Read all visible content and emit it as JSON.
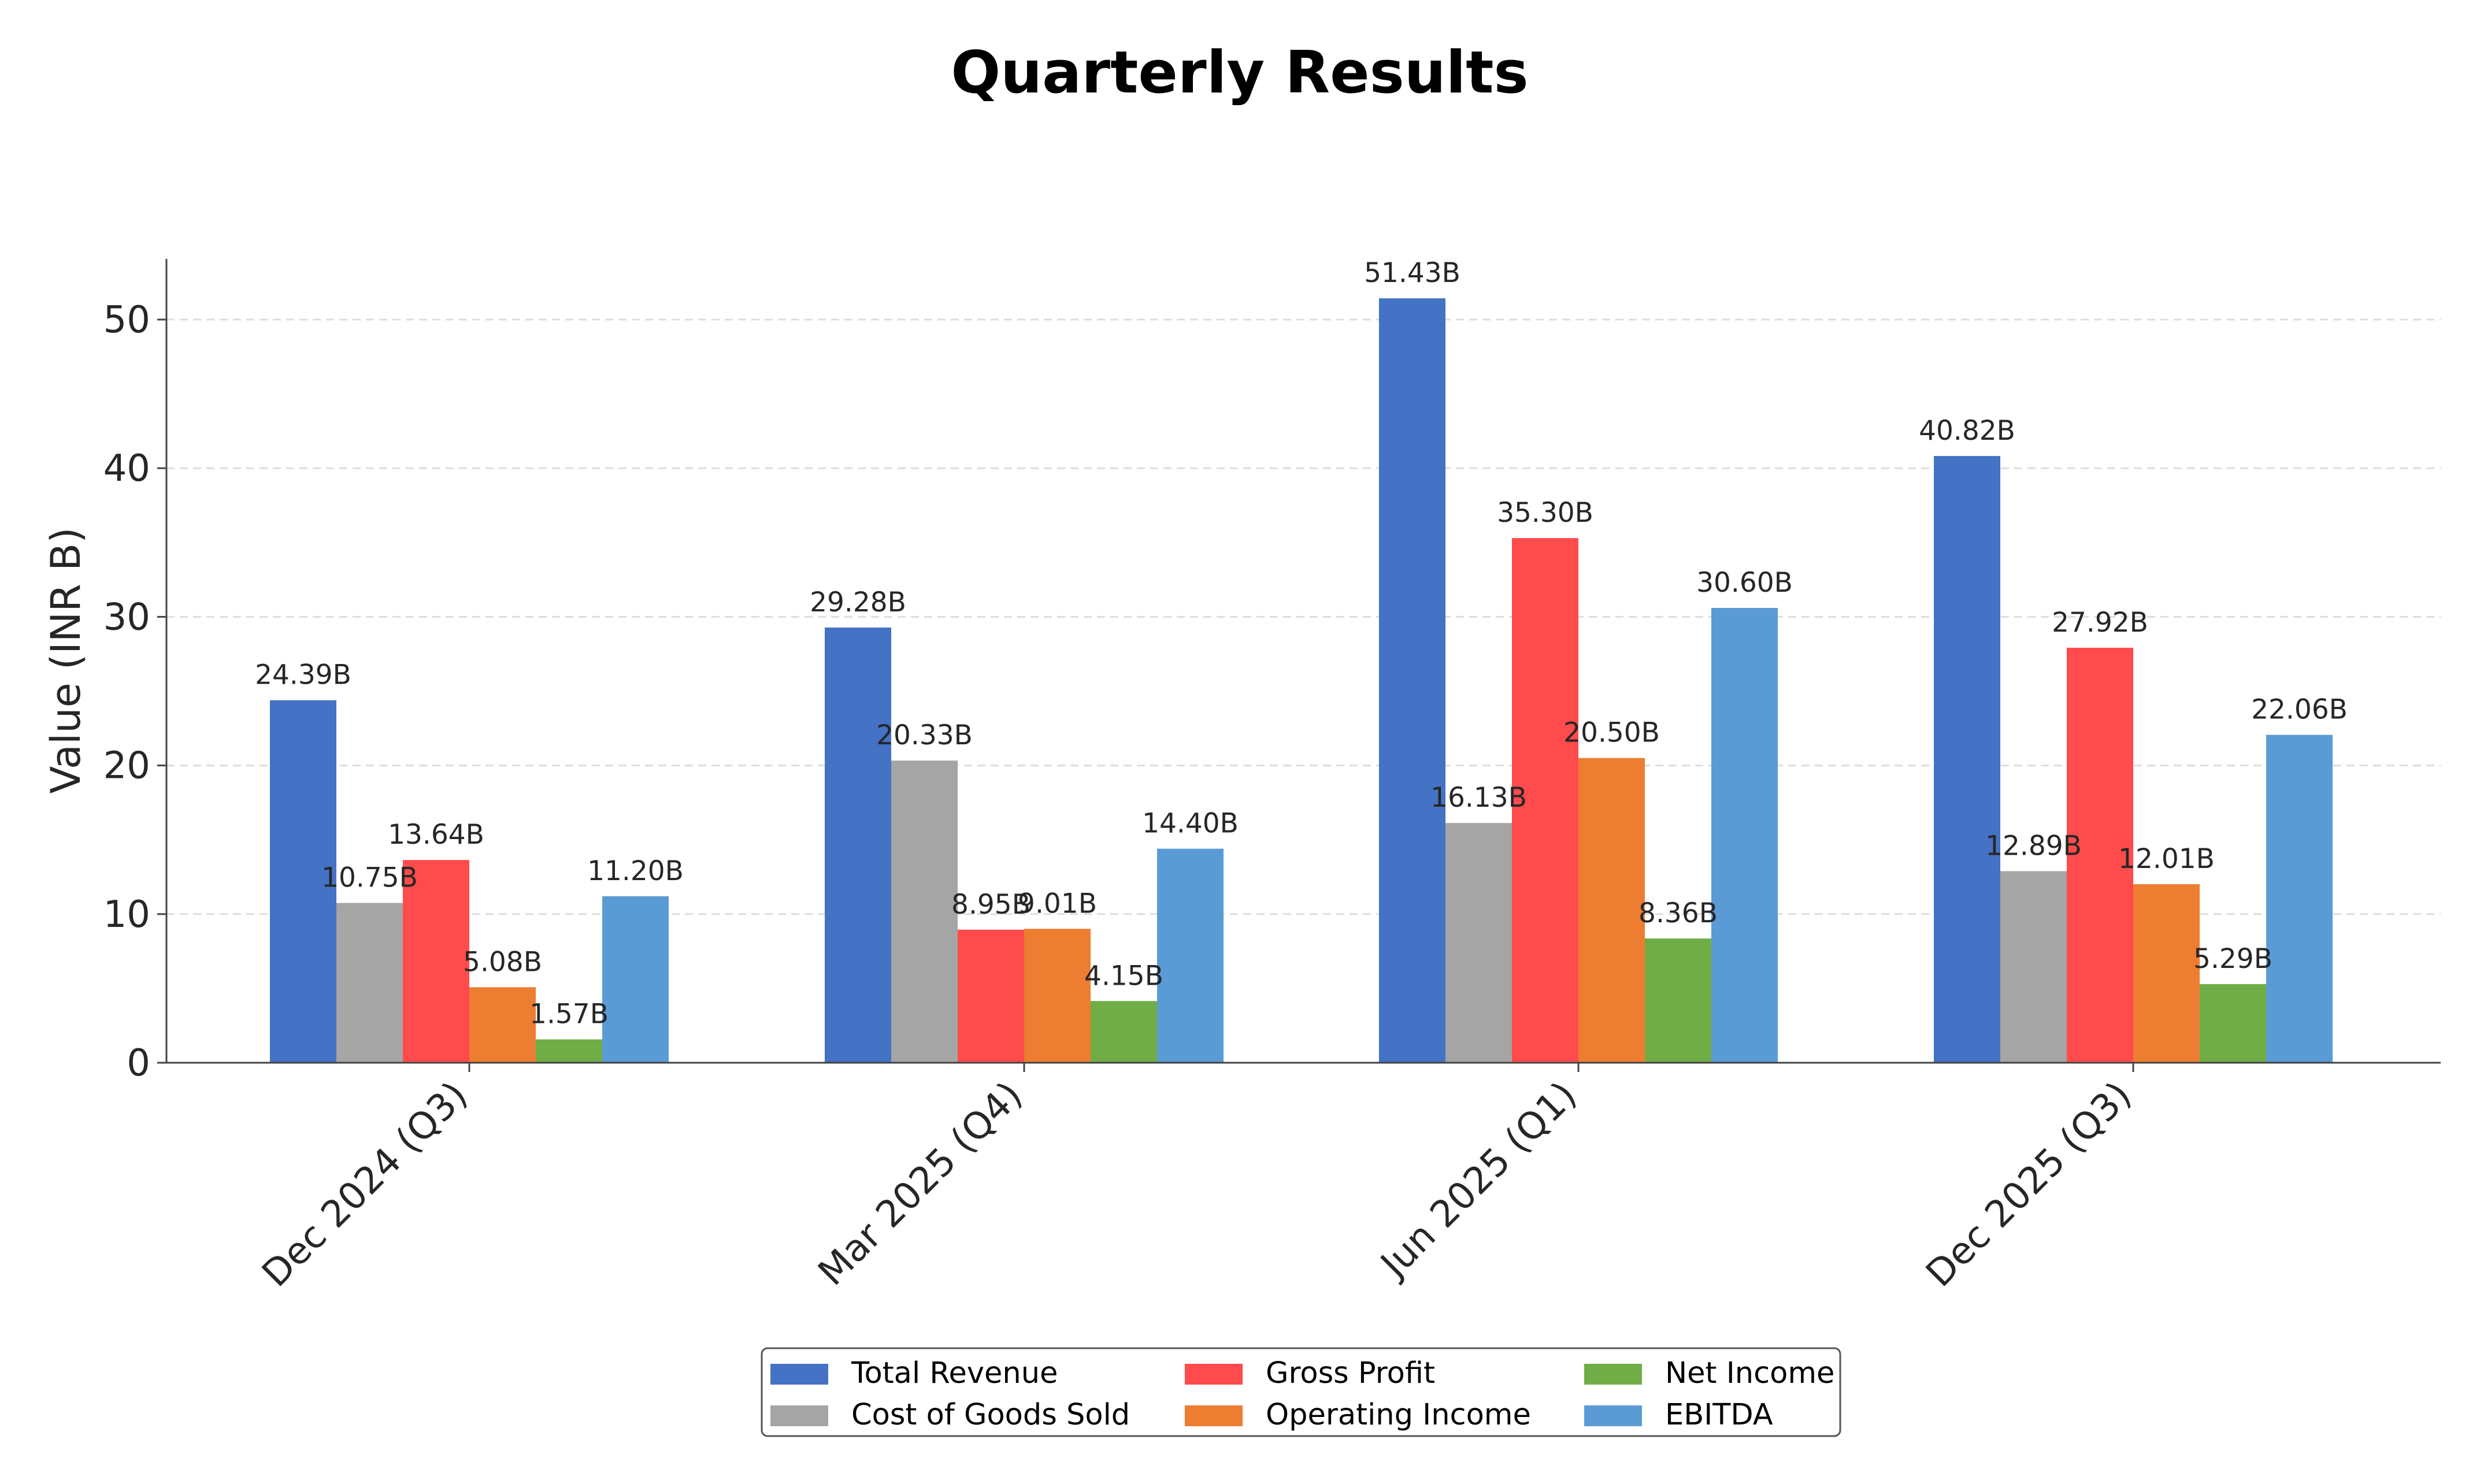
{
  "chart_data": {
    "type": "bar",
    "title": "Quarterly Results",
    "xlabel": "",
    "ylabel": "Value (INR B)",
    "ylim": [
      0,
      54
    ],
    "yticks": [
      "0",
      "10",
      "20",
      "30",
      "40",
      "50"
    ],
    "grid": "horizontal dashed",
    "legend_position": "bottom-center",
    "categories": [
      "Dec 2024 (Q3)",
      "Mar 2025 (Q4)",
      "Jun 2025 (Q1)",
      "Dec 2025 (Q3)"
    ],
    "series": [
      {
        "name": "Total Revenue",
        "color": "#4472C4",
        "values": [
          24.39,
          29.28,
          51.43,
          40.82
        ],
        "labels": [
          "24.39B",
          "29.28B",
          "51.43B",
          "40.82B"
        ]
      },
      {
        "name": "Cost of Goods Sold",
        "color": "#A5A5A5",
        "values": [
          10.75,
          20.33,
          16.13,
          12.89
        ],
        "labels": [
          "10.75B",
          "20.33B",
          "16.13B",
          "12.89B"
        ]
      },
      {
        "name": "Gross Profit",
        "color": "#FF4B4B",
        "values": [
          13.64,
          8.95,
          35.3,
          27.92
        ],
        "labels": [
          "13.64B",
          "8.95B",
          "35.30B",
          "27.92B"
        ]
      },
      {
        "name": "Operating Income",
        "color": "#ED7D31",
        "values": [
          5.08,
          9.01,
          20.5,
          12.01
        ],
        "labels": [
          "5.08B",
          "9.01B",
          "20.50B",
          "12.01B"
        ]
      },
      {
        "name": "Net Income",
        "color": "#70AD47",
        "values": [
          1.57,
          4.15,
          8.36,
          5.29
        ],
        "labels": [
          "1.57B",
          "4.15B",
          "8.36B",
          "5.29B"
        ]
      },
      {
        "name": "EBITDA",
        "color": "#5B9BD5",
        "values": [
          11.2,
          14.4,
          30.6,
          22.06
        ],
        "labels": [
          "11.20B",
          "14.40B",
          "30.60B",
          "22.06B"
        ]
      }
    ]
  }
}
